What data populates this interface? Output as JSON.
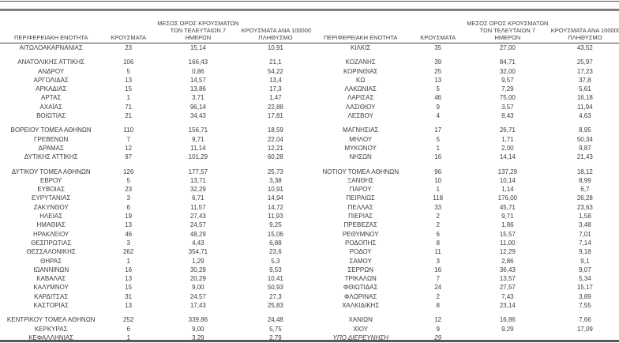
{
  "header": {
    "col_region": "ΠΕΡΙΦΕΡΕΙΑΚΗ ΕΝΟΤΗΤΑ",
    "col_cases": "ΚΡΟΥΣΜΑΤΑ",
    "col_avg7_line1": "ΜΕΣΟΣ ΟΡΟΣ ΚΡΟΥΣΜΑΤΩΝ",
    "col_avg7_line2": "ΤΩΝ ΤΕΛΕΥΤΑΙΩΝ 7",
    "col_avg7_line3": "ΗΜΕΡΩΝ",
    "col_per100k_line1": "ΚΡΟΥΣΜΑΤΑ ΑΝΑ 100000",
    "col_per100k_line2": "ΠΛΗΘΥΣΜΟ"
  },
  "colors": {
    "text": "#3d3d3d",
    "rule_top_thin": "#4d4d4d",
    "rule_top_gray": "#7f7f7f",
    "rule_bottom": "#595959"
  },
  "left_table": {
    "groups": [
      {
        "rows": [
          {
            "region": "ΑΙΤΩΛΟΑΚΑΡΝΑΝΙΑΣ",
            "cases": "23",
            "avg7": "15,14",
            "per100k": "10,91"
          }
        ]
      },
      {
        "rows": [
          {
            "region": "ΑΝΑΤΟΛΙΚΗΣ ΑΤΤΙΚΗΣ",
            "cases": "106",
            "avg7": "166,43",
            "per100k": "21,1"
          },
          {
            "region": "ΑΝΔΡΟΥ",
            "cases": "5",
            "avg7": "0,86",
            "per100k": "54,22"
          },
          {
            "region": "ΑΡΓΟΛΙΔΑΣ",
            "cases": "13",
            "avg7": "14,57",
            "per100k": "13,4"
          },
          {
            "region": "ΑΡΚΑΔΙΑΣ",
            "cases": "15",
            "avg7": "13,86",
            "per100k": "17,3"
          },
          {
            "region": "ΑΡΤΑΣ",
            "cases": "1",
            "avg7": "3,71",
            "per100k": "1,47"
          },
          {
            "region": "ΑΧΑΪΑΣ",
            "cases": "71",
            "avg7": "96,14",
            "per100k": "22,88"
          },
          {
            "region": "ΒΟΙΩΤΙΑΣ",
            "cases": "21",
            "avg7": "34,43",
            "per100k": "17,81"
          }
        ]
      },
      {
        "rows": [
          {
            "region": "ΒΟΡΕΙΟΥ ΤΟΜΕΑ ΑΘΗΝΩΝ",
            "cases": "110",
            "avg7": "156,71",
            "per100k": "18,59"
          },
          {
            "region": "ΓΡΕΒΕΝΩΝ",
            "cases": "7",
            "avg7": "9,71",
            "per100k": "22,04"
          },
          {
            "region": "ΔΡΑΜΑΣ",
            "cases": "12",
            "avg7": "11,14",
            "per100k": "12,21"
          },
          {
            "region": "ΔΥΤΙΚΗΣ ΑΤΤΙΚΗΣ",
            "cases": "97",
            "avg7": "101,29",
            "per100k": "60,28"
          }
        ]
      },
      {
        "rows": [
          {
            "region": "ΔΥΤΙΚΟΥ ΤΟΜΕΑ ΑΘΗΝΩΝ",
            "cases": "126",
            "avg7": "177,57",
            "per100k": "25,73"
          },
          {
            "region": "ΕΒΡΟΥ",
            "cases": "5",
            "avg7": "13,71",
            "per100k": "3,38"
          },
          {
            "region": "ΕΥΒΟΙΑΣ",
            "cases": "23",
            "avg7": "32,29",
            "per100k": "10,91"
          },
          {
            "region": "ΕΥΡΥΤΑΝΙΑΣ",
            "cases": "3",
            "avg7": "6,71",
            "per100k": "14,94"
          },
          {
            "region": "ΖΑΚΥΝΘΟΥ",
            "cases": "6",
            "avg7": "11,57",
            "per100k": "14,72"
          },
          {
            "region": "ΗΛΕΙΑΣ",
            "cases": "19",
            "avg7": "27,43",
            "per100k": "11,93"
          },
          {
            "region": "ΗΜΑΘΙΑΣ",
            "cases": "13",
            "avg7": "24,57",
            "per100k": "9,25"
          },
          {
            "region": "ΗΡΑΚΛΕΙΟΥ",
            "cases": "46",
            "avg7": "48,29",
            "per100k": "15,06"
          },
          {
            "region": "ΘΕΣΠΡΩΤΙΑΣ",
            "cases": "3",
            "avg7": "4,43",
            "per100k": "6,88"
          },
          {
            "region": "ΘΕΣΣΑΛΟΝΙΚΗΣ",
            "cases": "262",
            "avg7": "354,71",
            "per100k": "23,6"
          },
          {
            "region": "ΘΗΡΑΣ",
            "cases": "1",
            "avg7": "1,29",
            "per100k": "5,3"
          },
          {
            "region": "ΙΩΑΝΝΙΝΩΝ",
            "cases": "16",
            "avg7": "30,29",
            "per100k": "9,53"
          },
          {
            "region": "ΚΑΒΑΛΑΣ",
            "cases": "13",
            "avg7": "20,29",
            "per100k": "10,41"
          },
          {
            "region": "ΚΑΛΥΜΝΟΥ",
            "cases": "15",
            "avg7": "9,00",
            "per100k": "50,93"
          },
          {
            "region": "ΚΑΡΔΙΤΣΑΣ",
            "cases": "31",
            "avg7": "24,57",
            "per100k": "27,3"
          },
          {
            "region": "ΚΑΣΤΟΡΙΑΣ",
            "cases": "13",
            "avg7": "17,43",
            "per100k": "25,83"
          }
        ]
      },
      {
        "rows": [
          {
            "region": "ΚΕΝΤΡΙΚΟΥ ΤΟΜΕΑ ΑΘΗΝΩΝ",
            "cases": "252",
            "avg7": "339,86",
            "per100k": "24,48"
          },
          {
            "region": "ΚΕΡΚΥΡΑΣ",
            "cases": "6",
            "avg7": "9,00",
            "per100k": "5,75"
          },
          {
            "region": "ΚΕΦΑΛΛΗΝΙΑΣ",
            "cases": "1",
            "avg7": "3,29",
            "per100k": "2,79"
          }
        ]
      }
    ]
  },
  "right_table": {
    "groups": [
      {
        "rows": [
          {
            "region": "ΚΙΛΚΙΣ",
            "cases": "35",
            "avg7": "27,00",
            "per100k": "43,52"
          }
        ]
      },
      {
        "rows": [
          {
            "region": "ΚΟΖΑΝΗΣ",
            "cases": "39",
            "avg7": "84,71",
            "per100k": "25,97"
          },
          {
            "region": "ΚΟΡΙΝΘΙΑΣ",
            "cases": "25",
            "avg7": "32,00",
            "per100k": "17,23"
          },
          {
            "region": "ΚΩ",
            "cases": "13",
            "avg7": "9,57",
            "per100k": "37,8"
          },
          {
            "region": "ΛΑΚΩΝΙΑΣ",
            "cases": "5",
            "avg7": "7,29",
            "per100k": "5,61"
          },
          {
            "region": "ΛΑΡΙΣΑΣ",
            "cases": "46",
            "avg7": "75,00",
            "per100k": "16,18"
          },
          {
            "region": "ΛΑΣΙΘΙΟΥ",
            "cases": "9",
            "avg7": "3,57",
            "per100k": "11,94"
          },
          {
            "region": "ΛΕΣΒΟΥ",
            "cases": "4",
            "avg7": "8,43",
            "per100k": "4,63"
          }
        ]
      },
      {
        "rows": [
          {
            "region": "ΜΑΓΝΗΣΙΑΣ",
            "cases": "17",
            "avg7": "26,71",
            "per100k": "8,95"
          },
          {
            "region": "ΜΗΛΟΥ",
            "cases": "5",
            "avg7": "1,71",
            "per100k": "50,34"
          },
          {
            "region": "ΜΥΚΟΝΟΥ",
            "cases": "1",
            "avg7": "2,00",
            "per100k": "9,87"
          },
          {
            "region": "ΝΗΣΩΝ",
            "cases": "16",
            "avg7": "14,14",
            "per100k": "21,43"
          }
        ]
      },
      {
        "rows": [
          {
            "region": "ΝΟΤΙΟΥ ΤΟΜΕΑ ΑΘΗΝΩΝ",
            "cases": "96",
            "avg7": "137,29",
            "per100k": "18,12"
          },
          {
            "region": "ΞΑΝΘΗΣ",
            "cases": "10",
            "avg7": "10,14",
            "per100k": "8,99"
          },
          {
            "region": "ΠΑΡΟΥ",
            "cases": "1",
            "avg7": "1,14",
            "per100k": "6,7"
          },
          {
            "region": "ΠΕΙΡΑΙΩΣ",
            "cases": "118",
            "avg7": "176,00",
            "per100k": "26,28"
          },
          {
            "region": "ΠΕΛΛΑΣ",
            "cases": "33",
            "avg7": "45,71",
            "per100k": "23,63"
          },
          {
            "region": "ΠΙΕΡΙΑΣ",
            "cases": "2",
            "avg7": "9,71",
            "per100k": "1,58"
          },
          {
            "region": "ΠΡΕΒΕΖΑΣ",
            "cases": "2",
            "avg7": "1,86",
            "per100k": "3,48"
          },
          {
            "region": "ΡΕΘΥΜΝΟΥ",
            "cases": "6",
            "avg7": "15,57",
            "per100k": "7,01"
          },
          {
            "region": "ΡΟΔΟΠΗΣ",
            "cases": "8",
            "avg7": "11,00",
            "per100k": "7,14"
          },
          {
            "region": "ΡΟΔΟΥ",
            "cases": "11",
            "avg7": "12,29",
            "per100k": "9,18"
          },
          {
            "region": "ΣΑΜΟΥ",
            "cases": "3",
            "avg7": "2,86",
            "per100k": "9,1"
          },
          {
            "region": "ΣΕΡΡΩΝ",
            "cases": "16",
            "avg7": "36,43",
            "per100k": "9,07"
          },
          {
            "region": "ΤΡΙΚΑΛΩΝ",
            "cases": "7",
            "avg7": "13,57",
            "per100k": "5,34"
          },
          {
            "region": "ΦΘΙΩΤΙΔΑΣ",
            "cases": "24",
            "avg7": "27,57",
            "per100k": "15,17"
          },
          {
            "region": "ΦΛΩΡΙΝΑΣ",
            "cases": "2",
            "avg7": "7,43",
            "per100k": "3,89"
          },
          {
            "region": "ΧΑΛΚΙΔΙΚΗΣ",
            "cases": "8",
            "avg7": "23,14",
            "per100k": "7,55"
          }
        ]
      },
      {
        "rows": [
          {
            "region": "ΧΑΝΙΩΝ",
            "cases": "12",
            "avg7": "16,86",
            "per100k": "7,66"
          },
          {
            "region": "ΧΙΟΥ",
            "cases": "9",
            "avg7": "9,29",
            "per100k": "17,09"
          },
          {
            "region": "ΥΠΟ ΔΙΕΡΕΥΝΗΣΗ",
            "cases": "29",
            "avg7": "",
            "per100k": "",
            "italic": true
          }
        ]
      }
    ]
  }
}
